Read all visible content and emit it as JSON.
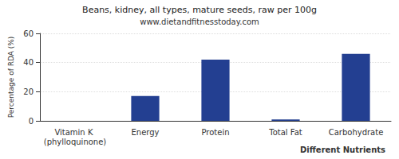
{
  "chart_data": {
    "type": "bar",
    "title": "Beans, kidney, all types, mature seeds, raw per 100g",
    "subtitle": "www.dietandfitnesstoday.com",
    "x_label": "Different Nutrients",
    "y_label": "Percentage of RDA (%)",
    "categories": [
      "Vitamin K (phylloquinone)",
      "Energy",
      "Protein",
      "Total Fat",
      "Carbohydrate"
    ],
    "values": [
      0,
      17,
      42,
      1,
      46
    ],
    "color": "#233f91",
    "ylim": [
      0,
      60
    ],
    "yticks": [
      0,
      20,
      40,
      60
    ],
    "grid": true
  }
}
